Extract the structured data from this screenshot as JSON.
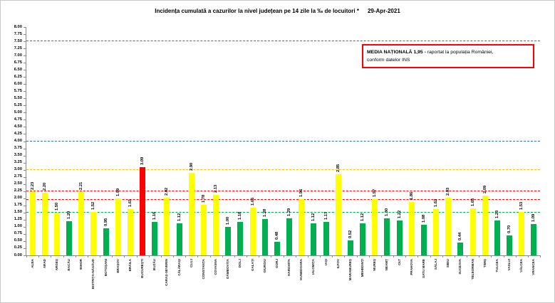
{
  "title": "Incidența cumulată a cazurilor la nivel județean pe 14 zile la ‰ de locuitori *",
  "date": "29-Apr-2021",
  "legend": {
    "bold": "MEDIA NAȚIONALĂ 1,95 -",
    "normal": "raportat la populația României,",
    "line2": "conform datelor INS"
  },
  "chart_data": {
    "type": "bar",
    "title": "Incidența cumulată a cazurilor la nivel județean pe 14 zile la ‰ de locuitori * 29-Apr-2021",
    "xlabel": "",
    "ylabel": "",
    "ylim": [
      0,
      8
    ],
    "ytick_step": 0.25,
    "grid": false,
    "yticks": [
      "0.00",
      "0.25",
      "0.50",
      "0.75",
      "1.00",
      "1.25",
      "1.50",
      "1.75",
      "2.00",
      "2.25",
      "2.50",
      "2.75",
      "3.00",
      "3.25",
      "3.50",
      "3.75",
      "4.00",
      "4.25",
      "4.50",
      "4.75",
      "5.00",
      "5.25",
      "5.50",
      "5.75",
      "6.00",
      "6.25",
      "6.50",
      "6.75",
      "7.00",
      "7.25",
      "7.50",
      "7.75",
      "8.00"
    ],
    "categories": [
      "ALBA",
      "ARAD",
      "ARGEȘ",
      "BACĂU",
      "BIHOR",
      "BISTRIȚA-NĂSĂUD",
      "BOTOȘANI",
      "BRAȘOV",
      "BRĂILA",
      "BUCUREȘTI",
      "BUZĂU",
      "CARAȘ-SEVERIN",
      "CĂLĂRAȘI",
      "CLUJ",
      "CONSTANȚA",
      "COVASNA",
      "DÂMBOVIȚA",
      "DOLJ",
      "GALAȚI",
      "GIURGIU",
      "GORJ",
      "HARGHITA",
      "HUNEDOARA",
      "IALOMIȚA",
      "IAȘI",
      "ILFOV",
      "MARAMUREȘ",
      "MEHEDINȚI",
      "MUREȘ",
      "NEAMȚ",
      "OLT",
      "PRAHOVA",
      "SATU MARE",
      "SĂLAJ",
      "SIBIU",
      "SUCEAVA",
      "TELEORMAN",
      "TIMIȘ",
      "TULCEA",
      "VASLUI",
      "VÂLCEA",
      "VRANCEA"
    ],
    "values": [
      2.23,
      2.2,
      1.5,
      1.2,
      2.21,
      1.52,
      0.95,
      1.99,
      1.61,
      3.09,
      1.16,
      2.02,
      1.12,
      2.9,
      1.78,
      2.13,
      1.0,
      1.18,
      1.66,
      1.28,
      0.48,
      1.29,
      1.96,
      1.12,
      1.17,
      2.85,
      0.52,
      1.12,
      1.97,
      1.3,
      1.22,
      1.86,
      1.08,
      1.62,
      2.03,
      0.44,
      1.65,
      2.09,
      1.23,
      0.7,
      1.53,
      1.09
    ],
    "thresholds": {
      "red": 3.0,
      "yellow": 1.5
    },
    "colors": {
      "green": "#00B050",
      "yellow": "#FFFF00",
      "red": "#FF0000"
    },
    "reference_lines": [
      {
        "value": 7.5,
        "color": "#2E75B6",
        "style": "dashed"
      },
      {
        "value": 4.0,
        "color": "#2E75B6",
        "style": "dashed"
      },
      {
        "value": 3.0,
        "color": "#FFC000",
        "style": "dashed"
      },
      {
        "value": 2.25,
        "color": "#FF0000",
        "style": "dashed"
      },
      {
        "value": 1.95,
        "color": "#FF0000",
        "style": "dashed"
      },
      {
        "value": 1.5,
        "color": "#00B050",
        "style": "dashed"
      }
    ],
    "national_average": 1.95
  }
}
